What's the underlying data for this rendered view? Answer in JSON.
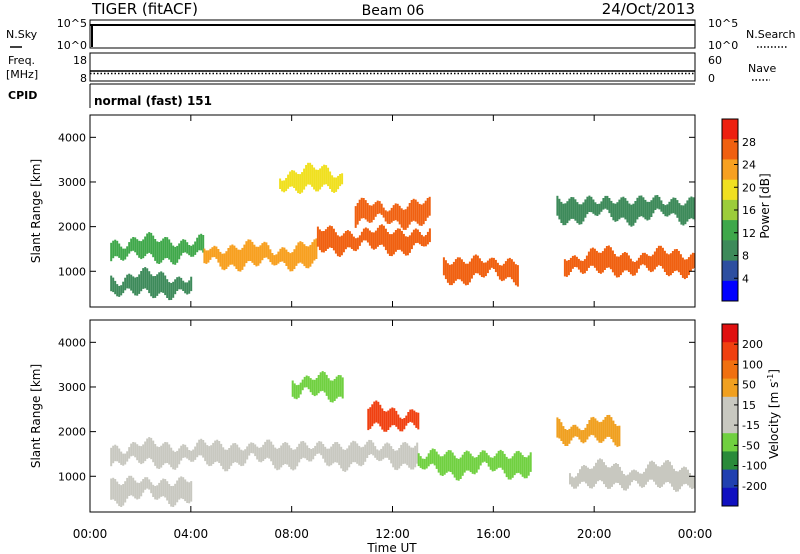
{
  "header": {
    "radar": "TIGER (fitACF)",
    "beam": "Beam 06",
    "date": "24/Oct/2013"
  },
  "nsky_panel": {
    "left_label": "N.Sky",
    "left_ticks": [
      "10^5",
      "10^0"
    ],
    "right_label": "N.Search",
    "right_ticks": [
      "10^5",
      "10^0"
    ]
  },
  "freq_panel": {
    "left_label_line1": "Freq.",
    "left_label_line2": "[MHz]",
    "left_ticks": [
      "18",
      "8"
    ],
    "right_label": "Nave",
    "right_ticks": [
      "60",
      "0"
    ]
  },
  "cpid_panel": {
    "label": "CPID",
    "program": "normal (fast) 151"
  },
  "x_axis": {
    "label": "Time UT",
    "ticks": [
      "00:00",
      "04:00",
      "08:00",
      "12:00",
      "16:00",
      "20:00",
      "00:00"
    ]
  },
  "colors": {
    "power": [
      "#0000ff",
      "#2e4fa0",
      "#3d8a5a",
      "#3fa84a",
      "#9ccd3a",
      "#f0e020",
      "#f7a020",
      "#f06010",
      "#ee2010"
    ],
    "velocity": [
      "#1010c0",
      "#2040b0",
      "#2a8a3a",
      "#70d040",
      "#c8c8c0",
      "#c8c8c0",
      "#f0a020",
      "#f07010",
      "#f04010",
      "#e01010"
    ],
    "ground_scatter": "#c8c8c0"
  },
  "chart_data": [
    {
      "type": "heatmap",
      "name": "power",
      "ylabel": "Slant Range [km]",
      "xlabel": "",
      "x_range_hours": [
        0,
        24
      ],
      "ylim": [
        200,
        4500
      ],
      "yticks": [
        1000,
        2000,
        3000,
        4000
      ],
      "colorbar": {
        "label": "Power [dB]",
        "ticks": [
          "28",
          "24",
          "20",
          "16",
          "12",
          "8",
          "4"
        ],
        "range": [
          0,
          32
        ]
      },
      "features": [
        {
          "start_hr": 0.8,
          "end_hr": 4.5,
          "range_km": 1500,
          "value": 12
        },
        {
          "start_hr": 4.5,
          "end_hr": 9.0,
          "range_km": 1350,
          "value": 24
        },
        {
          "start_hr": 9.0,
          "end_hr": 13.5,
          "range_km": 1700,
          "value": 26
        },
        {
          "start_hr": 10.5,
          "end_hr": 13.5,
          "range_km": 2300,
          "value": 28
        },
        {
          "start_hr": 7.5,
          "end_hr": 10.0,
          "range_km": 3050,
          "value": 20
        },
        {
          "start_hr": 14.0,
          "end_hr": 17.0,
          "range_km": 1050,
          "value": 26
        },
        {
          "start_hr": 18.8,
          "end_hr": 24.0,
          "range_km": 1200,
          "value": 28
        },
        {
          "start_hr": 18.5,
          "end_hr": 24.0,
          "range_km": 2400,
          "value": 10
        },
        {
          "start_hr": 0.8,
          "end_hr": 4.0,
          "range_km": 700,
          "value": 8
        }
      ]
    },
    {
      "type": "heatmap",
      "name": "velocity",
      "ylabel": "Slant Range [km]",
      "xlabel": "Time UT",
      "x_range_hours": [
        0,
        24
      ],
      "ylim": [
        200,
        4500
      ],
      "yticks": [
        1000,
        2000,
        3000,
        4000
      ],
      "colorbar": {
        "label": "Velocity [m s^-1]",
        "ticks": [
          "200",
          "100",
          "50",
          "15",
          "-15",
          "-50",
          "-100",
          "-200"
        ],
        "range": [
          -250,
          250
        ]
      },
      "features": [
        {
          "start_hr": 0.8,
          "end_hr": 13.0,
          "range_km": 1500,
          "value": 0
        },
        {
          "start_hr": 0.8,
          "end_hr": 4.0,
          "range_km": 700,
          "value": 0
        },
        {
          "start_hr": 13.0,
          "end_hr": 17.5,
          "range_km": 1300,
          "value": -60
        },
        {
          "start_hr": 19.0,
          "end_hr": 24.0,
          "range_km": 1000,
          "value": 0
        },
        {
          "start_hr": 11.0,
          "end_hr": 13.0,
          "range_km": 2300,
          "value": 150
        },
        {
          "start_hr": 8.0,
          "end_hr": 10.0,
          "range_km": 3000,
          "value": -80
        },
        {
          "start_hr": 18.5,
          "end_hr": 21.0,
          "range_km": 2000,
          "value": 50
        }
      ]
    }
  ]
}
